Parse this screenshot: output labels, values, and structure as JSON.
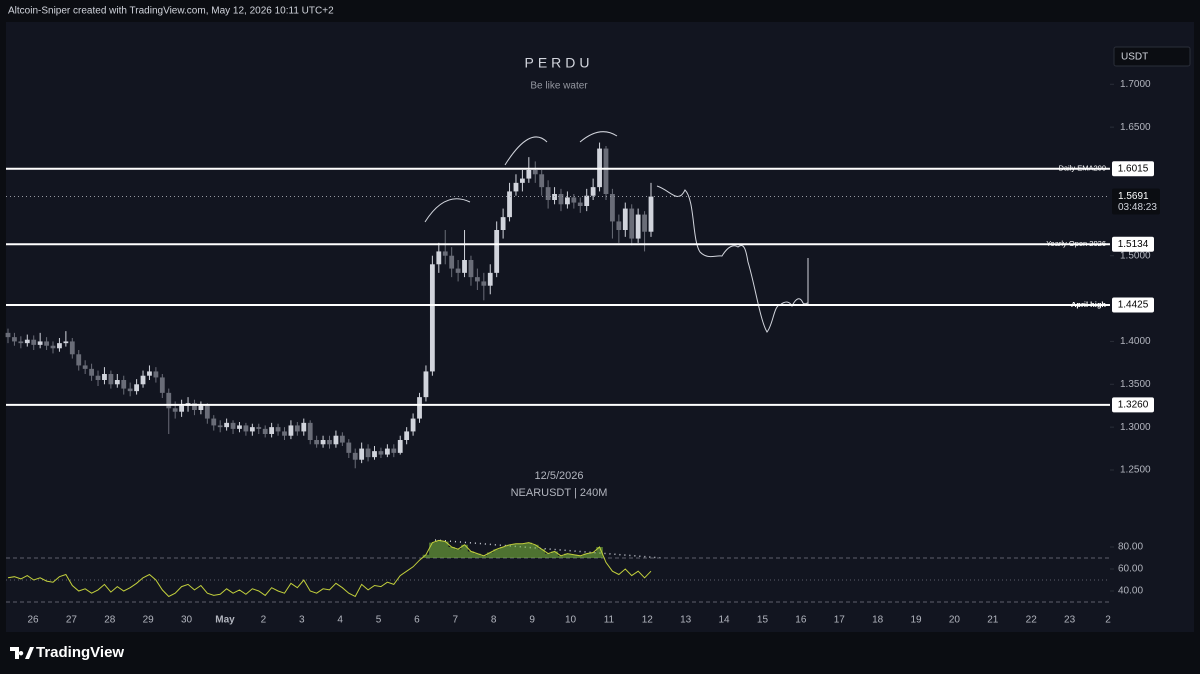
{
  "chart_data": {
    "type": "candlestick",
    "header": "Altcoin-Sniper created with TradingView.com, May 12, 2026 10:11 UTC+2",
    "title": "PERDU",
    "subtitle": "Be like water",
    "date_label": "12/5/2026",
    "symbol_label": "NEARUSDT | 240M",
    "currency": "USDT",
    "brand": "TradingView",
    "categories": [
      "26",
      "27",
      "28",
      "29",
      "30",
      "May",
      "2",
      "3",
      "4",
      "5",
      "6",
      "7",
      "8",
      "9",
      "10",
      "11",
      "12",
      "13",
      "14",
      "15",
      "16",
      "17",
      "18",
      "19",
      "20",
      "21",
      "22",
      "23",
      "2"
    ],
    "open": [
      1.41,
      1.405,
      1.4,
      1.398,
      1.402,
      1.396,
      1.4,
      1.395,
      1.392,
      1.398,
      1.4,
      1.385,
      1.372,
      1.368,
      1.36,
      1.355,
      1.362,
      1.35,
      1.355,
      1.345,
      1.342,
      1.35,
      1.36,
      1.365,
      1.358,
      1.34,
      1.322,
      1.318,
      1.325,
      1.328,
      1.32,
      1.325,
      1.31,
      1.302,
      1.3,
      1.305,
      1.298,
      1.302,
      1.295,
      1.3,
      1.298,
      1.292,
      1.3,
      1.295,
      1.29,
      1.302,
      1.295,
      1.305,
      1.285,
      1.28,
      1.285,
      1.28,
      1.29,
      1.282,
      1.27,
      1.262,
      1.275,
      1.265,
      1.272,
      1.268,
      1.275,
      1.27,
      1.285,
      1.295,
      1.31,
      1.335,
      1.365,
      1.49,
      1.505,
      1.5,
      1.485,
      1.48,
      1.495,
      1.475,
      1.47,
      1.465,
      1.48,
      1.53,
      1.545,
      1.575,
      1.585,
      1.59,
      1.6,
      1.595,
      1.58,
      1.565,
      1.572,
      1.56,
      1.568,
      1.562,
      1.558,
      1.57,
      1.58,
      1.625,
      1.572,
      1.54,
      1.53,
      1.555,
      1.52,
      1.548,
      1.528
    ],
    "high": [
      1.415,
      1.41,
      1.406,
      1.408,
      1.407,
      1.41,
      1.405,
      1.4,
      1.404,
      1.412,
      1.404,
      1.39,
      1.378,
      1.374,
      1.366,
      1.37,
      1.366,
      1.362,
      1.36,
      1.352,
      1.356,
      1.366,
      1.372,
      1.37,
      1.362,
      1.345,
      1.33,
      1.332,
      1.335,
      1.332,
      1.33,
      1.328,
      1.314,
      1.308,
      1.31,
      1.308,
      1.306,
      1.305,
      1.304,
      1.304,
      1.302,
      1.305,
      1.304,
      1.3,
      1.308,
      1.306,
      1.31,
      1.308,
      1.29,
      1.29,
      1.29,
      1.296,
      1.294,
      1.286,
      1.275,
      1.282,
      1.28,
      1.278,
      1.276,
      1.28,
      1.28,
      1.29,
      1.3,
      1.316,
      1.34,
      1.372,
      1.5,
      1.515,
      1.53,
      1.51,
      1.495,
      1.53,
      1.5,
      1.485,
      1.48,
      1.49,
      1.54,
      1.555,
      1.585,
      1.595,
      1.6,
      1.615,
      1.61,
      1.6,
      1.588,
      1.58,
      1.578,
      1.575,
      1.572,
      1.568,
      1.578,
      1.59,
      1.632,
      1.628,
      1.578,
      1.548,
      1.562,
      1.56,
      1.555,
      1.552,
      1.585
    ],
    "low": [
      1.398,
      1.395,
      1.392,
      1.394,
      1.39,
      1.392,
      1.39,
      1.386,
      1.388,
      1.394,
      1.38,
      1.366,
      1.362,
      1.354,
      1.348,
      1.35,
      1.345,
      1.346,
      1.338,
      1.336,
      1.338,
      1.346,
      1.355,
      1.352,
      1.334,
      1.292,
      1.31,
      1.312,
      1.318,
      1.314,
      1.315,
      1.304,
      1.296,
      1.294,
      1.296,
      1.292,
      1.294,
      1.29,
      1.29,
      1.292,
      1.288,
      1.288,
      1.29,
      1.285,
      1.286,
      1.29,
      1.29,
      1.28,
      1.276,
      1.276,
      1.275,
      1.276,
      1.278,
      1.264,
      1.252,
      1.258,
      1.26,
      1.262,
      1.264,
      1.265,
      1.265,
      1.268,
      1.28,
      1.29,
      1.305,
      1.33,
      1.36,
      1.48,
      1.49,
      1.475,
      1.47,
      1.475,
      1.465,
      1.46,
      1.448,
      1.455,
      1.475,
      1.52,
      1.54,
      1.57,
      1.575,
      1.585,
      1.585,
      1.57,
      1.555,
      1.56,
      1.552,
      1.555,
      1.555,
      1.55,
      1.552,
      1.565,
      1.575,
      1.565,
      1.52,
      1.515,
      1.522,
      1.512,
      1.515,
      1.505,
      1.522
    ],
    "close": [
      1.405,
      1.4,
      1.398,
      1.402,
      1.396,
      1.4,
      1.395,
      1.392,
      1.398,
      1.4,
      1.385,
      1.372,
      1.368,
      1.36,
      1.355,
      1.362,
      1.35,
      1.355,
      1.345,
      1.342,
      1.35,
      1.36,
      1.365,
      1.358,
      1.34,
      1.322,
      1.318,
      1.325,
      1.328,
      1.32,
      1.325,
      1.31,
      1.302,
      1.3,
      1.305,
      1.298,
      1.302,
      1.295,
      1.3,
      1.298,
      1.292,
      1.3,
      1.295,
      1.29,
      1.302,
      1.295,
      1.305,
      1.285,
      1.28,
      1.285,
      1.28,
      1.29,
      1.282,
      1.27,
      1.262,
      1.275,
      1.265,
      1.272,
      1.268,
      1.275,
      1.27,
      1.285,
      1.295,
      1.31,
      1.335,
      1.365,
      1.49,
      1.505,
      1.5,
      1.485,
      1.48,
      1.495,
      1.475,
      1.47,
      1.465,
      1.48,
      1.53,
      1.545,
      1.575,
      1.585,
      1.59,
      1.6,
      1.595,
      1.58,
      1.565,
      1.572,
      1.56,
      1.568,
      1.562,
      1.558,
      1.57,
      1.58,
      1.625,
      1.572,
      1.54,
      1.53,
      1.555,
      1.52,
      1.548,
      1.528,
      1.569
    ],
    "up_color": "#d1d4dc",
    "down_color": "#6a6d78",
    "ylim": [
      1.18,
      1.775
    ],
    "yticks": [
      {
        "value": 1.7,
        "label": "1.7000"
      },
      {
        "value": 1.65,
        "label": "1.6500"
      },
      {
        "value": 1.5,
        "label": "1.5000"
      },
      {
        "value": 1.4,
        "label": "1.4000"
      },
      {
        "value": 1.35,
        "label": "1.3500"
      },
      {
        "value": 1.3,
        "label": "1.3000"
      },
      {
        "value": 1.25,
        "label": "1.2500"
      }
    ],
    "levels": [
      {
        "name": "Daily EMA200",
        "value": 1.6015,
        "label": "1.6015"
      },
      {
        "name": "Yearly Open 2026",
        "value": 1.5134,
        "label": "1.5134"
      },
      {
        "name": "April high",
        "value": 1.4425,
        "label": "1.4425"
      },
      {
        "value": 1.326,
        "label": "1.3260"
      }
    ],
    "last_price": {
      "value": 1.5691,
      "label": "1.5691",
      "countdown": "03:48:23"
    },
    "rsi": {
      "color": "#c2cf3c",
      "values": [
        52,
        53,
        51,
        54,
        50,
        52,
        49,
        48,
        53,
        55,
        45,
        40,
        42,
        38,
        41,
        46,
        39,
        44,
        40,
        43,
        47,
        52,
        55,
        50,
        41,
        35,
        38,
        44,
        46,
        41,
        45,
        38,
        36,
        37,
        42,
        38,
        41,
        37,
        42,
        40,
        36,
        43,
        40,
        38,
        47,
        43,
        50,
        40,
        38,
        42,
        41,
        47,
        43,
        38,
        35,
        46,
        41,
        45,
        44,
        48,
        46,
        54,
        58,
        62,
        68,
        73,
        84,
        86,
        85,
        80,
        78,
        82,
        76,
        74,
        72,
        75,
        78,
        80,
        82,
        83,
        83,
        84,
        82,
        78,
        74,
        76,
        72,
        74,
        73,
        72,
        74,
        75,
        80,
        66,
        58,
        55,
        60,
        54,
        58,
        52,
        58
      ],
      "ylim": [
        20,
        90
      ],
      "yticks": [
        {
          "value": 80,
          "label": "80.00"
        },
        {
          "value": 60,
          "label": "60.00"
        },
        {
          "value": 40,
          "label": "40.00"
        }
      ],
      "bands": [
        70,
        50,
        30
      ]
    }
  }
}
